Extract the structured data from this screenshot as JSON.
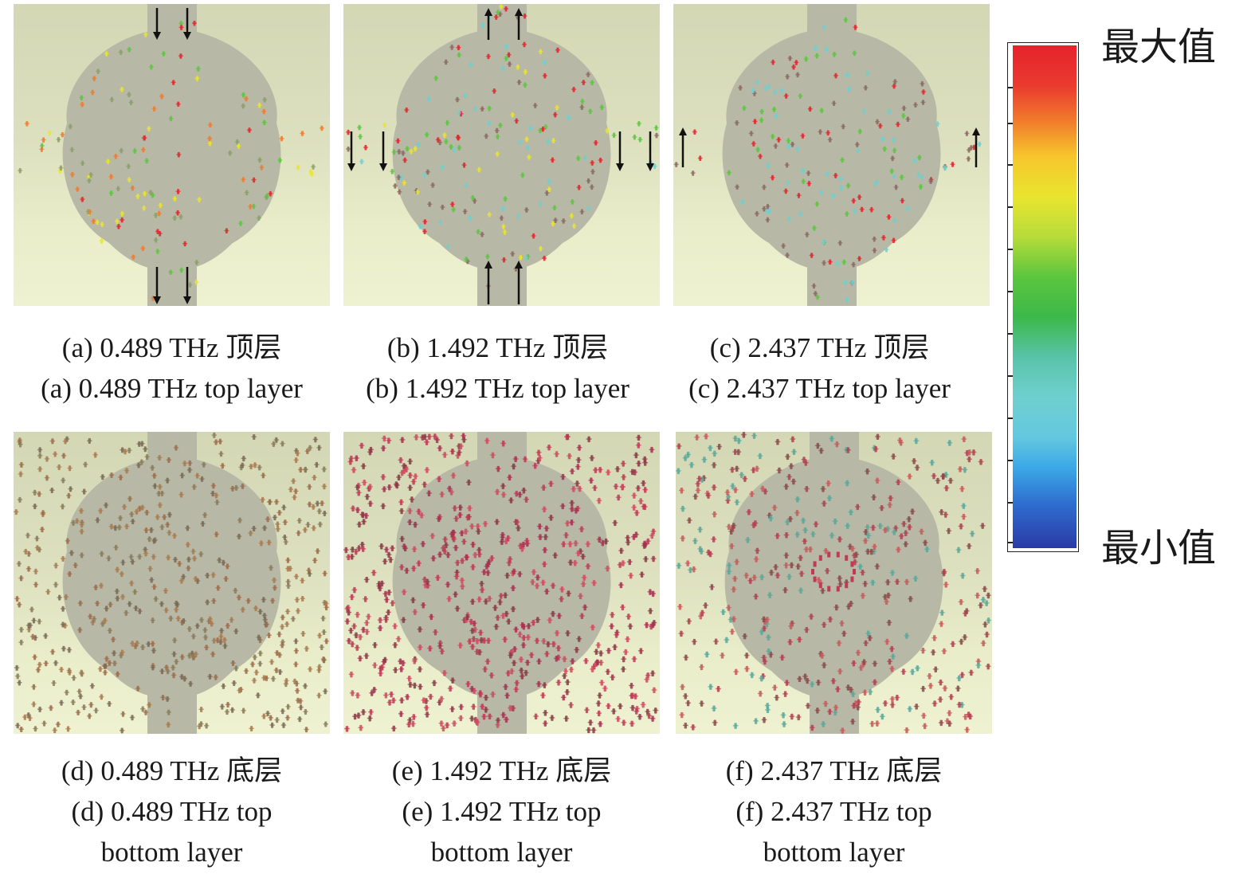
{
  "figure": {
    "panels": [
      {
        "id": "a",
        "caption_cn": "(a) 0.489 THz 顶层",
        "caption_en": [
          "(a) 0.489 THz top layer"
        ]
      },
      {
        "id": "b",
        "caption_cn": "(b) 1.492 THz 顶层",
        "caption_en": [
          "(b) 1.492 THz top layer"
        ]
      },
      {
        "id": "c",
        "caption_cn": "(c) 2.437 THz 顶层",
        "caption_en": [
          "(c) 2.437 THz top layer"
        ]
      },
      {
        "id": "d",
        "caption_cn": "(d) 0.489 THz 底层",
        "caption_en": [
          "(d) 0.489 THz top",
          "bottom layer"
        ]
      },
      {
        "id": "e",
        "caption_cn": "(e) 1.492 THz 底层",
        "caption_en": [
          "(e) 1.492 THz top",
          "bottom layer"
        ]
      },
      {
        "id": "f",
        "caption_cn": "(f) 2.437 THz 底层",
        "caption_en": [
          "(f) 2.437 THz top",
          "bottom layer"
        ]
      }
    ],
    "colorbar": {
      "max_label": "最大值",
      "min_label": "最小值",
      "colors": [
        "#e5232b",
        "#f07b2c",
        "#e9e52e",
        "#5cc63e",
        "#6fd0cf",
        "#3ba8e6",
        "#2a3aa5"
      ]
    }
  }
}
